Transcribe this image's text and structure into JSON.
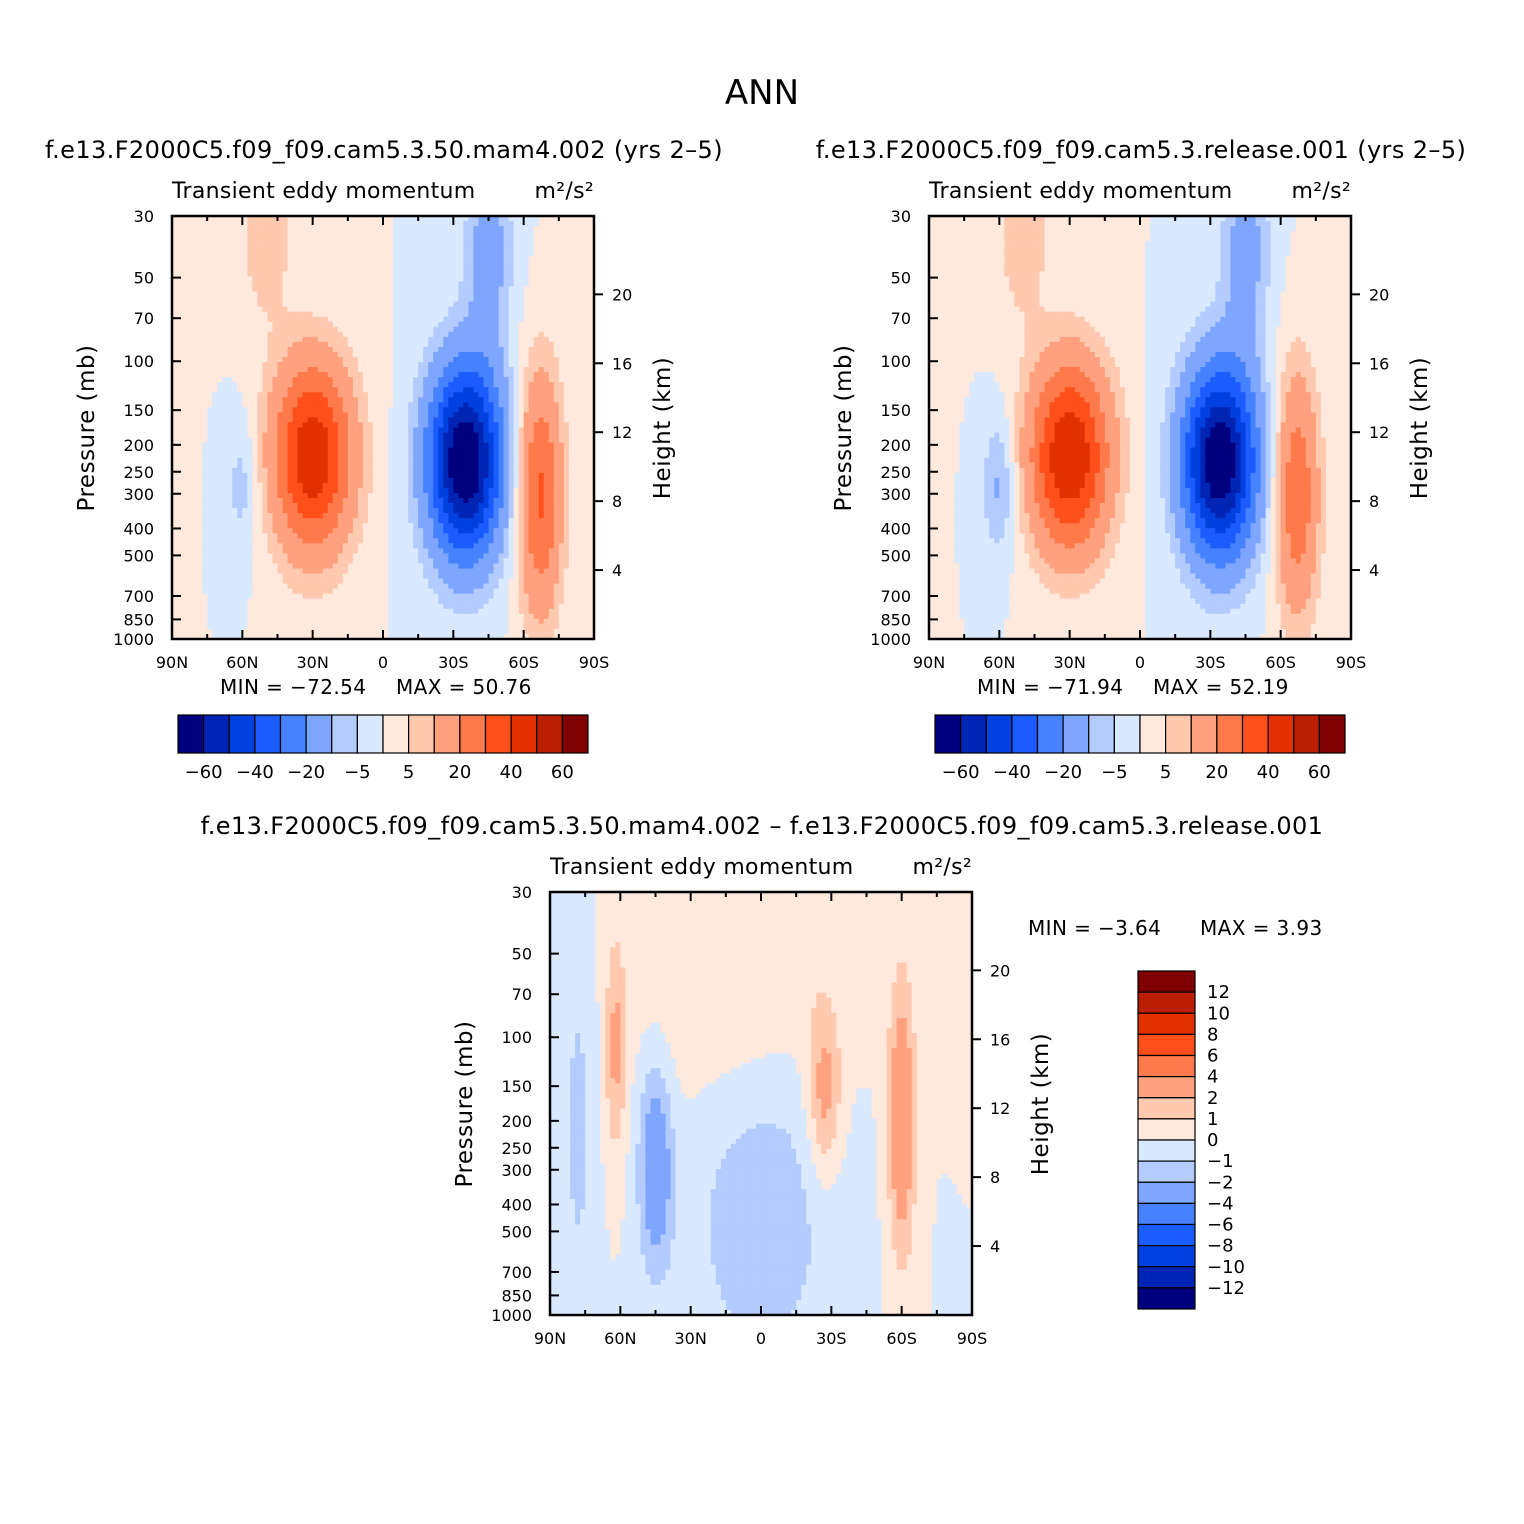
{
  "page_title": "ANN",
  "colors": {
    "palette": [
      "#00007f",
      "#0024b3",
      "#0041e0",
      "#1b5cff",
      "#4682ff",
      "#7ea6ff",
      "#b3cbff",
      "#d9e9ff",
      "#ffe8dc",
      "#ffc9b0",
      "#ffa07f",
      "#ff7a4a",
      "#ff4f1b",
      "#e23000",
      "#bb1e00",
      "#7f0000"
    ]
  },
  "chart_data": [
    {
      "id": "panel-test",
      "type": "heatmap",
      "run_title": "f.e13.F2000C5.f09_f09.cam5.3.50.mam4.002 (yrs 2–5)",
      "title_left": "Transient eddy momentum",
      "units": "m²/s²",
      "ylabel": "Pressure (mb)",
      "ylabel_right": "Height (km)",
      "x_ticks": [
        "90N",
        "60N",
        "30N",
        "0",
        "30S",
        "60S",
        "90S"
      ],
      "y_ticks": [
        "30",
        "50",
        "70",
        "100",
        "150",
        "200",
        "250",
        "300",
        "400",
        "500",
        "700",
        "850",
        "1000"
      ],
      "y_ticks_right": [
        "20",
        "16",
        "12",
        "8",
        "4"
      ],
      "xlim": [
        90,
        -90
      ],
      "ylim": [
        1000,
        30
      ],
      "min": -72.54,
      "max": 50.76,
      "min_text": "MIN = −72.54",
      "max_text": "MAX = 50.76",
      "levels": [
        -70,
        -60,
        -50,
        -40,
        -30,
        -20,
        -10,
        -5,
        0,
        5,
        10,
        20,
        30,
        40,
        50,
        60,
        70
      ],
      "colorbar_labels": [
        "−60",
        "−40",
        "−20",
        "−5",
        "5",
        "20",
        "40",
        "60"
      ],
      "features": [
        {
          "lat": 30,
          "p": 220,
          "amp": 48,
          "wlat": 12,
          "wz": 0.55
        },
        {
          "lat": -35,
          "p": 230,
          "amp": -72,
          "wlat": 11,
          "wz": 0.55
        },
        {
          "lat": -67,
          "p": 300,
          "amp": 32,
          "wlat": 6.5,
          "wz": 0.7
        },
        {
          "lat": 60,
          "p": 280,
          "amp": -8,
          "wlat": 5,
          "wz": 0.4
        },
        {
          "lat": -45,
          "p": 40,
          "amp": -14,
          "wlat": 7,
          "wz": 0.6
        },
        {
          "lat": 50,
          "p": 35,
          "amp": 9,
          "wlat": 8,
          "wz": 0.5
        }
      ]
    },
    {
      "id": "panel-control",
      "type": "heatmap",
      "run_title": "f.e13.F2000C5.f09_f09.cam5.3.release.001 (yrs 2–5)",
      "title_left": "Transient eddy momentum",
      "units": "m²/s²",
      "ylabel": "Pressure (mb)",
      "ylabel_right": "Height (km)",
      "x_ticks": [
        "90N",
        "60N",
        "30N",
        "0",
        "30S",
        "60S",
        "90S"
      ],
      "y_ticks": [
        "30",
        "50",
        "70",
        "100",
        "150",
        "200",
        "250",
        "300",
        "400",
        "500",
        "700",
        "850",
        "1000"
      ],
      "y_ticks_right": [
        "20",
        "16",
        "12",
        "8",
        "4"
      ],
      "xlim": [
        90,
        -90
      ],
      "ylim": [
        1000,
        30
      ],
      "min": -71.94,
      "max": 52.19,
      "min_text": "MIN = −71.94",
      "max_text": "MAX = 52.19",
      "levels": [
        -70,
        -60,
        -50,
        -40,
        -30,
        -20,
        -10,
        -5,
        0,
        5,
        10,
        20,
        30,
        40,
        50,
        60,
        70
      ],
      "colorbar_labels": [
        "−60",
        "−40",
        "−20",
        "−5",
        "5",
        "20",
        "40",
        "60"
      ],
      "features": [
        {
          "lat": 30,
          "p": 220,
          "amp": 50,
          "wlat": 12,
          "wz": 0.55
        },
        {
          "lat": -34,
          "p": 230,
          "amp": -71,
          "wlat": 11,
          "wz": 0.55
        },
        {
          "lat": -67,
          "p": 300,
          "amp": 28,
          "wlat": 6.5,
          "wz": 0.7
        },
        {
          "lat": 60,
          "p": 280,
          "amp": -12,
          "wlat": 5,
          "wz": 0.4
        },
        {
          "lat": -45,
          "p": 40,
          "amp": -14,
          "wlat": 7,
          "wz": 0.6
        },
        {
          "lat": 50,
          "p": 35,
          "amp": 9,
          "wlat": 8,
          "wz": 0.5
        }
      ]
    },
    {
      "id": "panel-diff",
      "type": "heatmap",
      "run_title": "f.e13.F2000C5.f09_f09.cam5.3.50.mam4.002 – f.e13.F2000C5.f09_f09.cam5.3.release.001",
      "title_left": "Transient eddy momentum",
      "units": "m²/s²",
      "ylabel": "Pressure (mb)",
      "ylabel_right": "Height (km)",
      "x_ticks": [
        "90N",
        "60N",
        "30N",
        "0",
        "30S",
        "60S",
        "90S"
      ],
      "y_ticks": [
        "30",
        "50",
        "70",
        "100",
        "150",
        "200",
        "250",
        "300",
        "400",
        "500",
        "700",
        "850",
        "1000"
      ],
      "y_ticks_right": [
        "20",
        "16",
        "12",
        "8",
        "4"
      ],
      "xlim": [
        90,
        -90
      ],
      "ylim": [
        1000,
        30
      ],
      "min": -3.64,
      "max": 3.93,
      "min_text": "MIN = −3.64",
      "max_text": "MAX = 3.93",
      "levels": [
        -14,
        -12,
        -10,
        -8,
        -6,
        -4,
        -2,
        -1,
        0,
        1,
        2,
        4,
        6,
        8,
        10,
        12,
        14
      ],
      "colorbar_labels": [
        "12",
        "10",
        "8",
        "6",
        "4",
        "2",
        "1",
        "0",
        "−1",
        "−2",
        "−4",
        "−6",
        "−8",
        "−10",
        "−12"
      ],
      "features": [
        {
          "lat": -60,
          "p": 200,
          "amp": 3.6,
          "wlat": 4,
          "wz": 0.8
        },
        {
          "lat": 45,
          "p": 290,
          "amp": -3.4,
          "wlat": 5,
          "wz": 0.6
        },
        {
          "lat": -27,
          "p": 160,
          "amp": 2.6,
          "wlat": 5,
          "wz": 0.5
        },
        {
          "lat": 62,
          "p": 110,
          "amp": 2.2,
          "wlat": 3,
          "wz": 0.6
        },
        {
          "lat": 0,
          "p": 400,
          "amp": -1.8,
          "wlat": 22,
          "wz": 1.0
        },
        {
          "lat": 78,
          "p": 200,
          "amp": -1.3,
          "wlat": 5,
          "wz": 1.2
        },
        {
          "lat": 10,
          "p": 60,
          "amp": 1.2,
          "wlat": 30,
          "wz": 0.9
        }
      ]
    }
  ]
}
